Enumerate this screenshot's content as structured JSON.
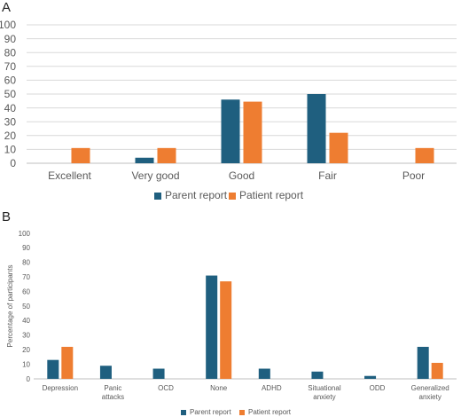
{
  "panels": {
    "a": {
      "label": "A"
    },
    "b": {
      "label": "B"
    }
  },
  "colors": {
    "parent": "#1f5f7f",
    "patient": "#ee7d31",
    "grid": "#d9d9d9",
    "axis": "#bfbfbf",
    "text": "#595959"
  },
  "chart_data": [
    {
      "type": "bar",
      "categories": [
        "Excellent",
        "Very good",
        "Good",
        "Fair",
        "Poor"
      ],
      "series": [
        {
          "name": "Parent report",
          "values": [
            0,
            4,
            46,
            50,
            0
          ]
        },
        {
          "name": "Patient report",
          "values": [
            11,
            11,
            44.5,
            22,
            11
          ]
        }
      ],
      "ylim": [
        0,
        100
      ],
      "yticks": [
        0,
        10,
        20,
        30,
        40,
        50,
        60,
        70,
        80,
        90,
        100
      ],
      "ylabel": "",
      "xlabel": "",
      "grid": true,
      "legend": "bottom-center"
    },
    {
      "type": "bar",
      "categories": [
        "Depression",
        "Panic attacks",
        "OCD",
        "None",
        "ADHD",
        "Situational anxiety",
        "ODD",
        "Generalized anxiety"
      ],
      "series": [
        {
          "name": "Parent report",
          "values": [
            13,
            9,
            7,
            71,
            7,
            5,
            2,
            22
          ]
        },
        {
          "name": "Patient report",
          "values": [
            22,
            0,
            0,
            67,
            0,
            0,
            0,
            11
          ]
        }
      ],
      "ylim": [
        0,
        100
      ],
      "yticks": [
        0,
        10,
        20,
        30,
        40,
        50,
        60,
        70,
        80,
        90,
        100
      ],
      "ylabel": "Percentage of participants",
      "xlabel": "",
      "grid": false,
      "legend": "bottom-center"
    }
  ]
}
